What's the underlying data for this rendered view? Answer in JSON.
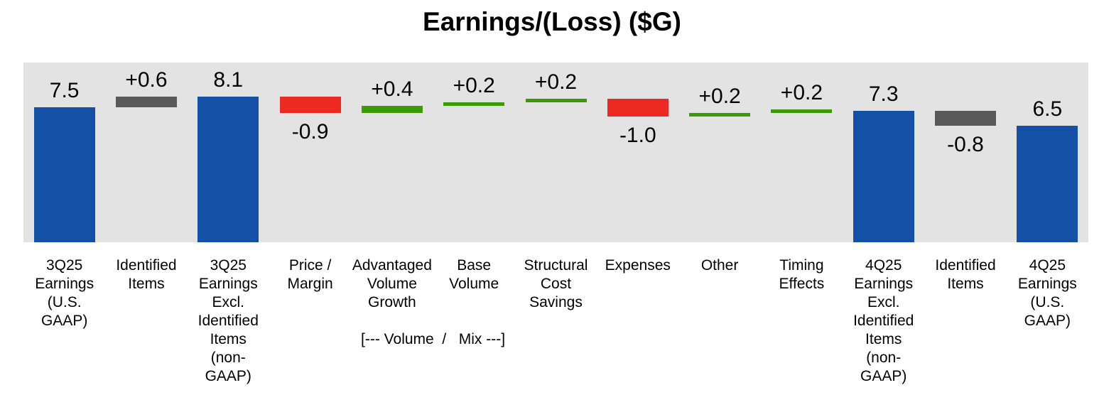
{
  "chart_data": {
    "type": "bar",
    "subtype": "waterfall",
    "title": "Earnings/(Loss) ($G)",
    "xlabel": "",
    "ylabel": "",
    "ylim": [
      0,
      10
    ],
    "grid": false,
    "legend": "none",
    "plot_background": "#e3e3e3",
    "page_background": "#ffffff",
    "colors": {
      "total": "#1450a5",
      "identified": "#595959",
      "increase": "#3a9b05",
      "decrease": "#ec2a23"
    },
    "annotation": {
      "text": "[--- Volume  /   Mix ---]",
      "span_columns": [
        5,
        6
      ]
    },
    "bars": [
      {
        "category": "3Q25 Earnings (U.S. GAAP)",
        "lines": "3Q25\nEarnings\n(U.S.\nGAAP)",
        "value": 7.5,
        "kind": "total",
        "color": "total",
        "value_label": "7.5"
      },
      {
        "category": "Identified Items",
        "lines": "Identified\nItems",
        "value": 0.6,
        "kind": "delta",
        "color": "identified",
        "value_label": "+0.6"
      },
      {
        "category": "3Q25 Earnings Excl. Identified Items (non-GAAP)",
        "lines": "3Q25\nEarnings\nExcl.\nIdentified\nItems\n(non-\nGAAP)",
        "value": 8.1,
        "kind": "total",
        "color": "total",
        "value_label": "8.1"
      },
      {
        "category": "Price / Margin",
        "lines": "Price /\nMargin",
        "value": -0.9,
        "kind": "delta",
        "color": "decrease",
        "value_label": "-0.9"
      },
      {
        "category": "Advantaged Volume Growth",
        "lines": "Advantaged\nVolume\nGrowth",
        "value": 0.4,
        "kind": "delta",
        "color": "increase",
        "value_label": "+0.4"
      },
      {
        "category": "Base Volume",
        "lines": "Base\nVolume",
        "value": 0.2,
        "kind": "delta",
        "color": "increase",
        "value_label": "+0.2"
      },
      {
        "category": "Structural Cost Savings",
        "lines": "Structural\nCost\nSavings",
        "value": 0.2,
        "kind": "delta",
        "color": "increase",
        "value_label": "+0.2"
      },
      {
        "category": "Expenses",
        "lines": "Expenses",
        "value": -1.0,
        "kind": "delta",
        "color": "decrease",
        "value_label": "-1.0"
      },
      {
        "category": "Other",
        "lines": "Other",
        "value": 0.2,
        "kind": "delta",
        "color": "increase",
        "value_label": "+0.2"
      },
      {
        "category": "Timing Effects",
        "lines": "Timing\nEffects",
        "value": 0.2,
        "kind": "delta",
        "color": "increase",
        "value_label": "+0.2"
      },
      {
        "category": "4Q25 Earnings Excl. Identified Items (non-GAAP)",
        "lines": "4Q25\nEarnings\nExcl.\nIdentified\nItems\n(non-\nGAAP)",
        "value": 7.3,
        "kind": "total",
        "color": "total",
        "value_label": "7.3"
      },
      {
        "category": "Identified Items",
        "lines": "Identified\nItems",
        "value": -0.8,
        "kind": "delta",
        "color": "identified",
        "value_label": "-0.8"
      },
      {
        "category": "4Q25 Earnings (U.S. GAAP)",
        "lines": "4Q25\nEarnings\n(U.S.\nGAAP)",
        "value": 6.5,
        "kind": "total",
        "color": "total",
        "value_label": "6.5"
      }
    ]
  }
}
